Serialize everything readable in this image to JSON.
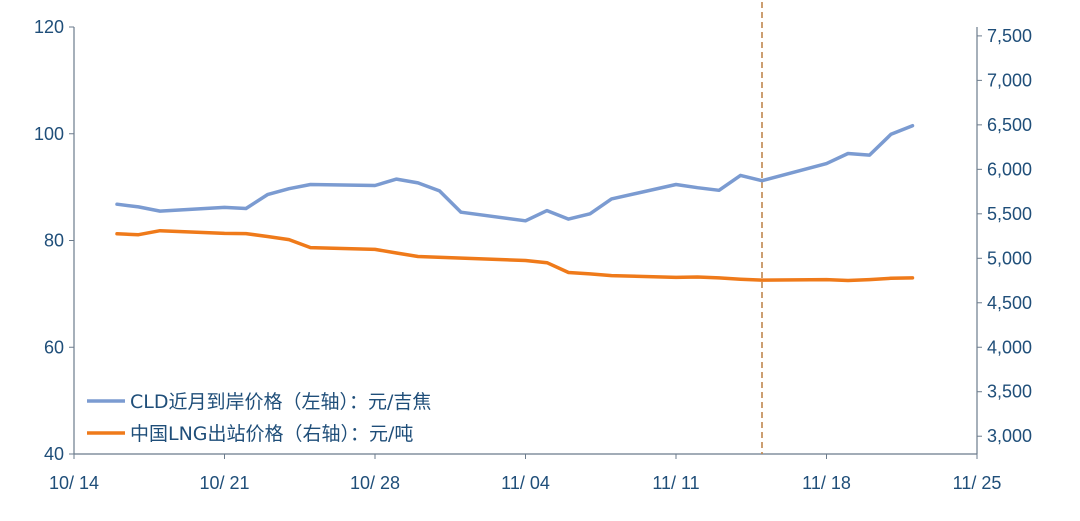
{
  "chart_data": {
    "type": "line",
    "x_axis": {
      "ticks": [
        "10/ 14",
        "10/ 21",
        "10/ 28",
        "11/ 04",
        "11/ 11",
        "11/ 18",
        "11/ 25"
      ]
    },
    "y_left": {
      "ylim": [
        40,
        120
      ],
      "ticks": [
        "120",
        "100",
        "80",
        "60",
        "40"
      ]
    },
    "y_right": {
      "ylim": [
        2800,
        7600
      ],
      "ticks": [
        "7,500",
        "7,000",
        "6,500",
        "6,000",
        "5,500",
        "5,000",
        "4,500",
        "4,000",
        "3,500",
        "3,000"
      ]
    },
    "marker_date": "11/15",
    "series": [
      {
        "name": "CLD近月到岸价格（左轴）：元/吉焦",
        "axis": "left",
        "color": "#7b9bd1",
        "points": [
          [
            "10/16",
            86.8
          ],
          [
            "10/17",
            86.3
          ],
          [
            "10/18",
            85.5
          ],
          [
            "10/21",
            86.2
          ],
          [
            "10/22",
            86.0
          ],
          [
            "10/23",
            88.6
          ],
          [
            "10/24",
            89.7
          ],
          [
            "10/25",
            90.5
          ],
          [
            "10/28",
            90.3
          ],
          [
            "10/29",
            91.5
          ],
          [
            "10/30",
            90.8
          ],
          [
            "10/31",
            89.3
          ],
          [
            "11/01",
            85.3
          ],
          [
            "11/04",
            83.7
          ],
          [
            "11/05",
            85.6
          ],
          [
            "11/06",
            84.0
          ],
          [
            "11/07",
            85.0
          ],
          [
            "11/08",
            87.8
          ],
          [
            "11/11",
            90.5
          ],
          [
            "11/12",
            89.9
          ],
          [
            "11/13",
            89.4
          ],
          [
            "11/14",
            92.2
          ],
          [
            "11/15",
            91.2
          ],
          [
            "11/18",
            94.4
          ],
          [
            "11/19",
            96.3
          ],
          [
            "11/20",
            96.0
          ],
          [
            "11/21",
            99.9
          ],
          [
            "11/22",
            101.5
          ]
        ]
      },
      {
        "name": "中国LNG出站价格（右轴）：元/吨",
        "axis": "right",
        "color": "#ef7a1a",
        "points": [
          [
            "10/16",
            5275
          ],
          [
            "10/17",
            5265
          ],
          [
            "10/18",
            5310
          ],
          [
            "10/21",
            5280
          ],
          [
            "10/22",
            5278
          ],
          [
            "10/23",
            5245
          ],
          [
            "10/24",
            5210
          ],
          [
            "10/25",
            5120
          ],
          [
            "10/28",
            5100
          ],
          [
            "10/29",
            5060
          ],
          [
            "10/30",
            5020
          ],
          [
            "11/04",
            4975
          ],
          [
            "11/05",
            4950
          ],
          [
            "11/06",
            4840
          ],
          [
            "11/07",
            4825
          ],
          [
            "11/08",
            4805
          ],
          [
            "11/11",
            4785
          ],
          [
            "11/12",
            4790
          ],
          [
            "11/13",
            4780
          ],
          [
            "11/14",
            4765
          ],
          [
            "11/15",
            4755
          ],
          [
            "11/18",
            4760
          ],
          [
            "11/19",
            4750
          ],
          [
            "11/20",
            4760
          ],
          [
            "11/21",
            4775
          ],
          [
            "11/22",
            4780
          ]
        ]
      }
    ],
    "legend": {
      "position": "bottom-left",
      "entries": [
        "CLD近月到岸价格（左轴）：元/吉焦",
        "中国LNG出站价格（右轴）：元/吨"
      ]
    },
    "grid": false
  }
}
